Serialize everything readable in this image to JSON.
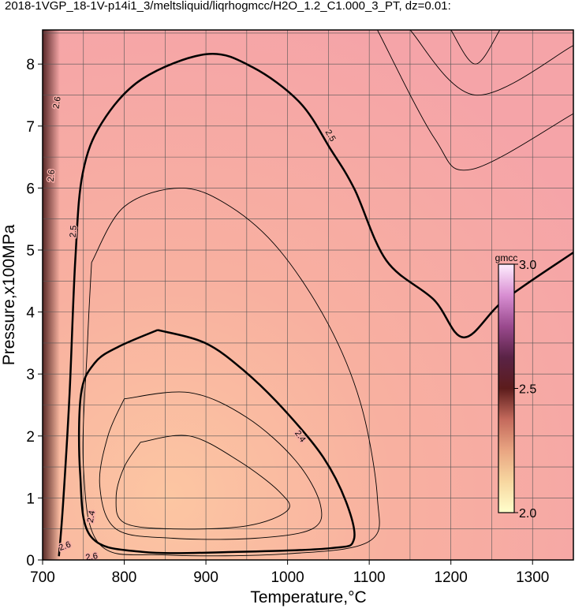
{
  "chart_data": {
    "type": "contour",
    "title": "2018-1VGP_18-1V-p14i1_3/meltsliquid/liqrhogmcc/H2O_1.2_C1.000_3_PT, dz=0.01:",
    "x_label": "Temperature,°C",
    "y_label": "Pressure,x100MPa",
    "xlim": [
      700,
      1350
    ],
    "ylim": [
      0,
      8.55
    ],
    "xticks": [
      700,
      800,
      900,
      1000,
      1100,
      1200,
      1300
    ],
    "yticks": [
      0,
      1,
      2,
      3,
      4,
      5,
      6,
      7,
      8
    ],
    "xgrid": [
      750,
      800,
      850,
      900,
      950,
      1000,
      1050,
      1100,
      1150,
      1200,
      1250,
      1300
    ],
    "ygrid": [
      0.5,
      1,
      1.5,
      2,
      2.5,
      3,
      3.5,
      4,
      4.5,
      5,
      5.5,
      6,
      6.5,
      7,
      7.5,
      8,
      8.5
    ],
    "contours": [
      {
        "bold": true,
        "x": [
          720,
          725,
          733,
          740,
          749,
          773,
          822,
          901,
          957,
          1015,
          1053,
          1082,
          1121,
          1179,
          1216,
          1266,
          1350
        ],
        "y": [
          0.06,
          0.89,
          2.67,
          4.83,
          6.23,
          7.06,
          7.76,
          8.16,
          7.95,
          7.38,
          6.62,
          5.98,
          4.83,
          4.2,
          3.59,
          4.2,
          4.96
        ]
      },
      {
        "bold": true,
        "x": [
          841,
          899,
          947,
          996,
          1044,
          1073,
          1081,
          1053,
          938,
          822,
          759,
          746,
          747,
          764,
          793,
          841
        ],
        "y": [
          3.71,
          3.5,
          3.05,
          2.42,
          1.65,
          0.89,
          0.32,
          0.19,
          0.13,
          0.13,
          0.38,
          1.4,
          2.67,
          3.18,
          3.44,
          3.71
        ]
      },
      {
        "bold": false,
        "x": [
          800,
          880,
          950,
          1010,
          1040,
          1030,
          960,
          860,
          790,
          770,
          780,
          800
        ],
        "y": [
          2.6,
          2.7,
          2.3,
          1.6,
          0.9,
          0.5,
          0.35,
          0.35,
          0.5,
          1.2,
          2.0,
          2.6
        ]
      },
      {
        "bold": false,
        "x": [
          820,
          880,
          940,
          990,
          1000,
          950,
          860,
          800,
          790,
          800,
          820
        ],
        "y": [
          1.9,
          2.0,
          1.6,
          1.1,
          0.8,
          0.55,
          0.5,
          0.6,
          1.0,
          1.5,
          1.9
        ]
      },
      {
        "bold": false,
        "x": [
          760,
          800,
          870,
          930,
          990,
          1050,
          1090,
          1110,
          1100,
          1000,
          850,
          770,
          750,
          755,
          760
        ],
        "y": [
          4.8,
          5.7,
          6.0,
          5.7,
          5.0,
          3.8,
          2.5,
          1.0,
          0.3,
          0.1,
          0.08,
          0.25,
          1.5,
          3.5,
          4.8
        ]
      },
      {
        "bold": false,
        "x": [
          1200,
          1230,
          1260
        ],
        "y": [
          8.55,
          8.0,
          8.55
        ]
      },
      {
        "bold": false,
        "x": [
          1150,
          1230,
          1350
        ],
        "y": [
          8.55,
          7.5,
          8.3
        ]
      },
      {
        "bold": false,
        "x": [
          1110,
          1180,
          1225,
          1350
        ],
        "y": [
          8.55,
          6.8,
          6.3,
          7.2
        ]
      }
    ],
    "contour_labels": [
      {
        "text": "2.5",
        "x": 1053,
        "y": 6.85,
        "angle": 60
      },
      {
        "text": "2.5",
        "x": 737,
        "y": 5.3,
        "angle": -85
      },
      {
        "text": "2.4",
        "x": 1016,
        "y": 2.0,
        "angle": 55
      },
      {
        "text": "2.4",
        "x": 759,
        "y": 0.7,
        "angle": -80
      },
      {
        "text": "2.6",
        "x": 717,
        "y": 7.38,
        "angle": -80
      },
      {
        "text": "2.6",
        "x": 710,
        "y": 6.2,
        "angle": -85
      },
      {
        "text": "2.6",
        "x": 727,
        "y": 0.23,
        "angle": -20
      },
      {
        "text": "2.6",
        "x": 760,
        "y": 0.06,
        "angle": -10
      }
    ],
    "colorbar": {
      "label": "gmcc",
      "lim": [
        2,
        3
      ],
      "ticks": [
        {
          "value": 2,
          "label": "2.0"
        },
        {
          "value": 2.5,
          "label": "2.5"
        },
        {
          "value": 3,
          "label": "3.0"
        }
      ],
      "colors": [
        "#ffffcc",
        "#f7d7a0",
        "#e9a582",
        "#c46a5c",
        "#5c1c1c",
        "#5a2346",
        "#9a4a8e",
        "#d88ed2",
        "#ffeeff"
      ]
    },
    "line_color": "#000000"
  }
}
